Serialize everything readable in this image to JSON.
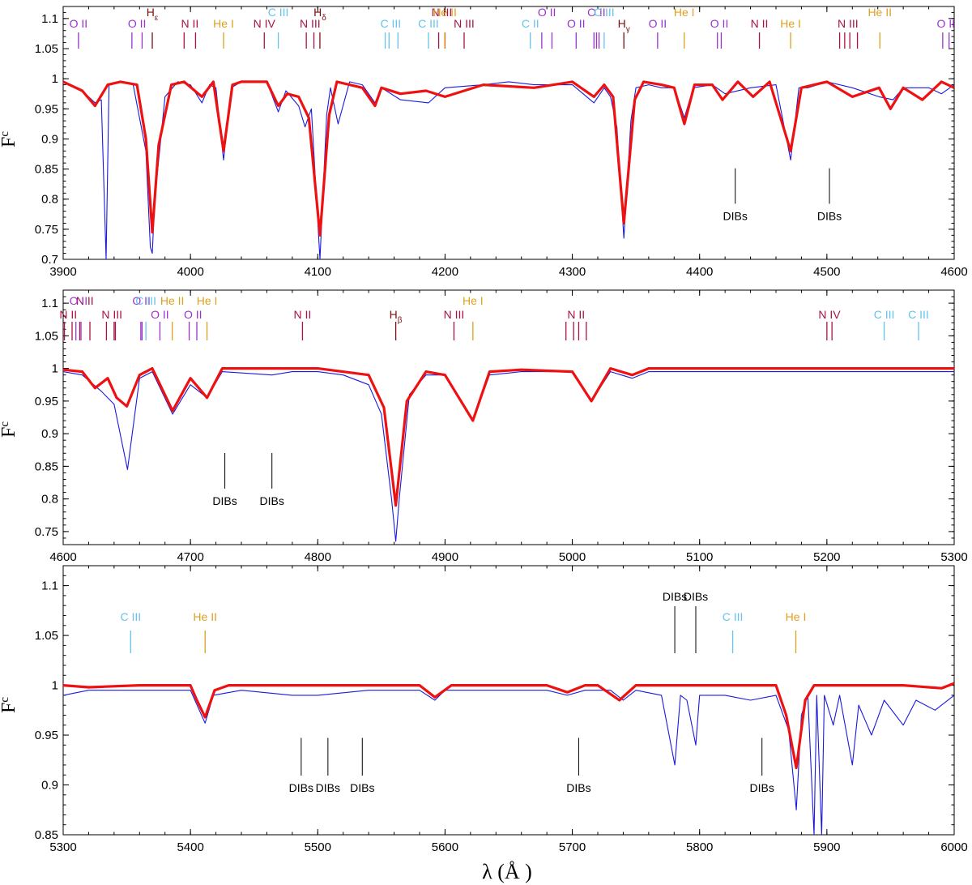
{
  "figure": {
    "xlabel": "λ (Å )",
    "ylabel": "F",
    "ylabel_sub": "c"
  },
  "colors": {
    "observed": "#1a1adc",
    "model": "#ee1111",
    "O II": "#9933cc",
    "N II": "#aa1144",
    "N III": "#aa1144",
    "N IV": "#aa1144",
    "C III": "#66c2ee",
    "C II": "#66c2ee",
    "He I": "#dda020",
    "He II": "#dda020",
    "H": "#7a1010",
    "DIB": "#000000"
  },
  "chart_data": [
    {
      "type": "line",
      "xlim": [
        3900,
        4600
      ],
      "ylim": [
        0.7,
        1.12
      ],
      "xticks": [
        3900,
        4000,
        4100,
        4200,
        4300,
        4400,
        4500,
        4600
      ],
      "yticks": [
        0.7,
        0.75,
        0.8,
        0.85,
        0.9,
        0.95,
        1,
        1.05,
        1.1
      ],
      "series": [
        {
          "role": "observed",
          "x": [
            3900,
            3915,
            3925,
            3930,
            3933.7,
            3936,
            3945,
            3955,
            3965,
            3968.5,
            3970,
            3972,
            3980,
            3990,
            4000,
            4009,
            4015,
            4020,
            4026,
            4032,
            4040,
            4060,
            4069,
            4075,
            4085,
            4090,
            4095,
            4101.7,
            4107,
            4110,
            4116,
            4125,
            4135,
            4145,
            4150,
            4165,
            4187,
            4200,
            4230,
            4250,
            4270,
            4300,
            4317,
            4325,
            4330,
            4335,
            4340.5,
            4346,
            4350,
            4360,
            4370,
            4380,
            4388,
            4395,
            4410,
            4420,
            4440,
            4460,
            4471.5,
            4478,
            4485,
            4500,
            4520,
            4541,
            4552,
            4560,
            4580,
            4590,
            4600
          ],
          "y": [
            0.995,
            0.98,
            0.96,
            0.965,
            0.7,
            0.99,
            0.995,
            0.99,
            0.88,
            0.72,
            0.71,
            0.8,
            0.97,
            0.995,
            0.99,
            0.96,
            0.99,
            0.985,
            0.865,
            0.985,
            0.995,
            0.995,
            0.945,
            0.98,
            0.955,
            0.92,
            0.95,
            0.7,
            0.94,
            0.985,
            0.925,
            0.995,
            0.99,
            0.96,
            0.985,
            0.965,
            0.96,
            0.985,
            0.99,
            0.995,
            0.99,
            0.99,
            0.96,
            0.985,
            0.97,
            0.92,
            0.735,
            0.93,
            0.985,
            0.99,
            0.985,
            0.985,
            0.935,
            0.985,
            0.99,
            0.975,
            0.985,
            0.99,
            0.865,
            0.985,
            0.985,
            0.995,
            0.985,
            0.97,
            0.965,
            0.985,
            0.985,
            0.975,
            0.99
          ]
        },
        {
          "role": "model",
          "x": [
            3900,
            3915,
            3925,
            3935,
            3945,
            3958,
            3965,
            3970,
            3975,
            3985,
            3995,
            4009,
            4018,
            4026,
            4033,
            4040,
            4060,
            4069,
            4076,
            4085,
            4093,
            4101.7,
            4109,
            4115,
            4125,
            4135,
            4145,
            4150,
            4165,
            4185,
            4200,
            4230,
            4270,
            4300,
            4317,
            4325,
            4332,
            4340.5,
            4349,
            4356,
            4370,
            4380,
            4388,
            4396,
            4410,
            4418,
            4430,
            4442,
            4455,
            4471.5,
            4480,
            4500,
            4520,
            4541,
            4550,
            4560,
            4575,
            4590,
            4600
          ],
          "y": [
            0.995,
            0.98,
            0.955,
            0.99,
            0.995,
            0.99,
            0.9,
            0.745,
            0.89,
            0.99,
            0.995,
            0.97,
            0.995,
            0.88,
            0.99,
            0.995,
            0.995,
            0.955,
            0.975,
            0.97,
            0.935,
            0.74,
            0.94,
            0.995,
            0.99,
            0.985,
            0.955,
            0.985,
            0.975,
            0.98,
            0.97,
            0.99,
            0.985,
            0.995,
            0.97,
            0.99,
            0.97,
            0.76,
            0.965,
            0.995,
            0.99,
            0.985,
            0.925,
            0.99,
            0.99,
            0.965,
            0.995,
            0.97,
            0.995,
            0.88,
            0.985,
            0.995,
            0.97,
            0.985,
            0.95,
            0.985,
            0.965,
            0.995,
            0.985
          ]
        }
      ],
      "line_ids": [
        {
          "label": "O II",
          "pos": [
            3912
          ]
        },
        {
          "label": "O II",
          "pos": [
            3954,
            3962
          ]
        },
        {
          "label": "H",
          "sub": "ε",
          "pos": [
            3970
          ]
        },
        {
          "label": "N II",
          "pos": [
            3995,
            4004
          ]
        },
        {
          "label": "He I",
          "pos": [
            4026
          ]
        },
        {
          "label": "N IV",
          "pos": [
            4058
          ]
        },
        {
          "label": "C III",
          "pos": [
            4069
          ]
        },
        {
          "label": "N III",
          "pos": [
            4091,
            4097
          ]
        },
        {
          "label": "H",
          "sub": "δ",
          "pos": [
            4101.7
          ]
        },
        {
          "label": "C III",
          "pos": [
            4153,
            4156,
            4163
          ]
        },
        {
          "label": "C III",
          "pos": [
            4187
          ]
        },
        {
          "label": "N III",
          "pos": [
            4195,
            4200
          ]
        },
        {
          "label": "He II",
          "pos": [
            4199.8
          ]
        },
        {
          "label": "N III",
          "pos": [
            4215
          ]
        },
        {
          "label": "C II",
          "pos": [
            4267
          ]
        },
        {
          "label": "O II",
          "pos": [
            4276,
            4284
          ]
        },
        {
          "label": "O II",
          "pos": [
            4303
          ]
        },
        {
          "label": "O II",
          "pos": [
            4317,
            4319,
            4321
          ]
        },
        {
          "label": "C III",
          "pos": [
            4325
          ]
        },
        {
          "label": "H",
          "sub": "γ",
          "pos": [
            4340.5
          ]
        },
        {
          "label": "O II",
          "pos": [
            4367
          ]
        },
        {
          "label": "He I",
          "pos": [
            4387.9
          ]
        },
        {
          "label": "O II",
          "pos": [
            4414,
            4417
          ]
        },
        {
          "label": "N II",
          "pos": [
            4447
          ]
        },
        {
          "label": "He I",
          "pos": [
            4471.5
          ]
        },
        {
          "label": "N III",
          "pos": [
            4510,
            4514,
            4518,
            4524
          ]
        },
        {
          "label": "He II",
          "pos": [
            4541.6
          ]
        },
        {
          "label": "O II",
          "pos": [
            4591,
            4596
          ]
        }
      ],
      "dibs": [
        {
          "label": "DIBs",
          "pos": 4428
        },
        {
          "label": "DIBs",
          "pos": 4502
        }
      ]
    },
    {
      "type": "line",
      "xlim": [
        4600,
        5300
      ],
      "ylim": [
        0.73,
        1.12
      ],
      "xticks": [
        4600,
        4700,
        4800,
        4900,
        5000,
        5100,
        5200,
        5300
      ],
      "yticks": [
        0.75,
        0.8,
        0.85,
        0.9,
        0.95,
        1,
        1.05,
        1.1
      ],
      "series": [
        {
          "role": "observed",
          "x": [
            4600,
            4615,
            4630,
            4640,
            4650.5,
            4660,
            4670,
            4686,
            4700,
            4713,
            4725,
            4764,
            4780,
            4800,
            4820,
            4840,
            4850,
            4858,
            4861.3,
            4864,
            4872,
            4885,
            4900,
            4921.9,
            4935,
            4960,
            5000,
            5015,
            5030,
            5047,
            5060,
            5100,
            5200,
            5300
          ],
          "y": [
            0.995,
            0.99,
            0.965,
            0.945,
            0.845,
            0.985,
            0.995,
            0.93,
            0.975,
            0.955,
            0.995,
            0.99,
            0.995,
            0.995,
            0.99,
            0.975,
            0.93,
            0.8,
            0.735,
            0.8,
            0.96,
            0.99,
            0.99,
            0.92,
            0.99,
            0.995,
            0.995,
            0.95,
            0.995,
            0.985,
            0.995,
            0.995,
            0.995,
            0.995
          ]
        },
        {
          "role": "model",
          "x": [
            4600,
            4615,
            4625,
            4635,
            4642,
            4650,
            4660,
            4670,
            4686,
            4700,
            4713,
            4725,
            4800,
            4840,
            4852,
            4861.3,
            4870,
            4885,
            4900,
            4921.9,
            4935,
            4960,
            5000,
            5015,
            5030,
            5047,
            5060,
            5100,
            5200,
            5300
          ],
          "y": [
            0.998,
            0.995,
            0.97,
            0.985,
            0.955,
            0.942,
            0.99,
            1.0,
            0.935,
            0.985,
            0.955,
            1.0,
            1.0,
            0.99,
            0.94,
            0.79,
            0.95,
            0.995,
            0.99,
            0.92,
            0.995,
            0.998,
            0.995,
            0.95,
            1.0,
            0.99,
            1.0,
            1.0,
            1.0,
            1.0
          ]
        }
      ],
      "line_ids": [
        {
          "label": "N II",
          "pos": [
            4601,
            4607
          ]
        },
        {
          "label": "N II",
          "pos": [
            4613,
            4621
          ]
        },
        {
          "label": "O II",
          "pos": [
            4610,
            4614
          ]
        },
        {
          "label": "N III",
          "pos": [
            4634,
            4640,
            4641
          ]
        },
        {
          "label": "O II",
          "pos": [
            4661,
            4662
          ]
        },
        {
          "label": "C III",
          "pos": [
            4665
          ]
        },
        {
          "label": "O II",
          "pos": [
            4676
          ]
        },
        {
          "label": "He II",
          "pos": [
            4685.7
          ]
        },
        {
          "label": "O II",
          "pos": [
            4699,
            4705
          ]
        },
        {
          "label": "He I",
          "pos": [
            4713
          ]
        },
        {
          "label": "N II",
          "pos": [
            4788
          ]
        },
        {
          "label": "H",
          "sub": "β",
          "pos": [
            4861.3
          ]
        },
        {
          "label": "N III",
          "pos": [
            4907
          ]
        },
        {
          "label": "He I",
          "pos": [
            4921.9
          ]
        },
        {
          "label": "N II",
          "pos": [
            4995,
            5001,
            5005,
            5011
          ]
        },
        {
          "label": "N IV",
          "pos": [
            5200,
            5204
          ]
        },
        {
          "label": "C III",
          "pos": [
            5245
          ]
        },
        {
          "label": "C III",
          "pos": [
            5272
          ]
        }
      ],
      "dibs": [
        {
          "label": "DIBs",
          "pos": 4727
        },
        {
          "label": "DIBs",
          "pos": 4764
        }
      ]
    },
    {
      "type": "line",
      "xlim": [
        5300,
        6000
      ],
      "ylim": [
        0.85,
        1.12
      ],
      "xticks": [
        5300,
        5400,
        5500,
        5600,
        5700,
        5800,
        5900,
        6000
      ],
      "yticks": [
        0.85,
        0.9,
        0.95,
        1,
        1.05,
        1.1
      ],
      "series": [
        {
          "role": "observed",
          "x": [
            5300,
            5320,
            5340,
            5380,
            5400,
            5411.5,
            5418,
            5440,
            5480,
            5500,
            5540,
            5580,
            5592,
            5600,
            5640,
            5680,
            5696,
            5710,
            5730,
            5740,
            5750,
            5770,
            5780.5,
            5785,
            5790,
            5797,
            5800,
            5820,
            5840,
            5860,
            5870,
            5876,
            5880,
            5885,
            5889.9,
            5892,
            5895.9,
            5898,
            5905,
            5910,
            5920,
            5925,
            5935,
            5945,
            5960,
            5970,
            5985,
            6000
          ],
          "y": [
            0.99,
            0.995,
            0.995,
            0.995,
            0.995,
            0.962,
            0.99,
            0.995,
            0.99,
            0.99,
            0.995,
            0.995,
            0.985,
            0.995,
            0.995,
            0.995,
            0.99,
            0.995,
            0.995,
            0.985,
            0.995,
            0.99,
            0.92,
            0.99,
            0.985,
            0.94,
            0.99,
            0.99,
            0.985,
            0.99,
            0.955,
            0.875,
            0.97,
            0.99,
            0.85,
            0.99,
            0.85,
            0.99,
            0.96,
            0.99,
            0.92,
            0.98,
            0.95,
            0.985,
            0.96,
            0.985,
            0.975,
            0.99
          ]
        },
        {
          "role": "model",
          "x": [
            5300,
            5320,
            5360,
            5400,
            5405,
            5411.5,
            5419,
            5430,
            5500,
            5580,
            5592,
            5605,
            5680,
            5696,
            5710,
            5720,
            5737,
            5750,
            5800,
            5860,
            5868,
            5876,
            5883,
            5890,
            5920,
            5960,
            5990,
            6000
          ],
          "y": [
            1.0,
            0.998,
            1.0,
            1.0,
            0.985,
            0.968,
            0.995,
            1.0,
            1.0,
            1.0,
            0.988,
            1.0,
            1.0,
            0.993,
            1.0,
            1.0,
            0.985,
            1.0,
            1.0,
            1.0,
            0.97,
            0.917,
            0.985,
            1.0,
            1.0,
            1.0,
            0.997,
            1.002
          ]
        }
      ],
      "line_ids": [
        {
          "label": "C III",
          "pos": [
            5353
          ]
        },
        {
          "label": "He II",
          "pos": [
            5411.5
          ]
        },
        {
          "label": "C III",
          "pos": [
            5826
          ]
        },
        {
          "label": "He I",
          "pos": [
            5875.6
          ]
        }
      ],
      "dibs_top": [
        {
          "label": "DIBs",
          "pos": 5780.5
        },
        {
          "label": "DIBs",
          "pos": 5797
        }
      ],
      "dibs": [
        {
          "label": "DIBs",
          "pos": 5487
        },
        {
          "label": "DIBs",
          "pos": 5508
        },
        {
          "label": "DIBs",
          "pos": 5535
        },
        {
          "label": "DIBs",
          "pos": 5705
        },
        {
          "label": "DIBs",
          "pos": 5849
        }
      ]
    }
  ]
}
